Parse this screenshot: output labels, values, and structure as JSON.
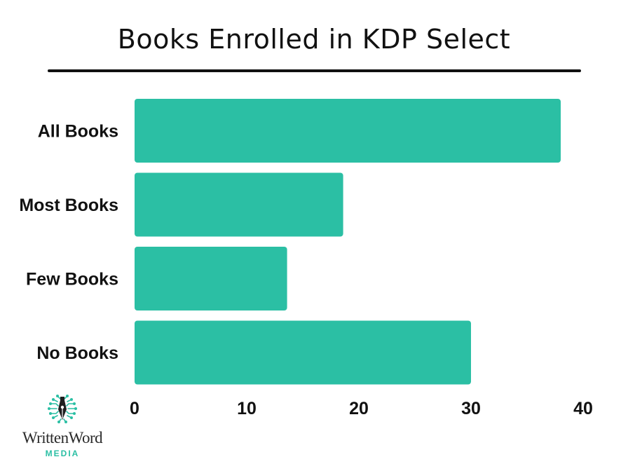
{
  "chart_data": {
    "type": "bar",
    "orientation": "horizontal",
    "title": "Books Enrolled in KDP Select",
    "categories": [
      "All Books",
      "Most Books",
      "Few Books",
      "No Books"
    ],
    "values": [
      38,
      18.6,
      13.6,
      30
    ],
    "xlim": [
      0,
      40
    ],
    "xticks": [
      "0",
      "10",
      "20",
      "30",
      "40"
    ],
    "xlabel": "",
    "ylabel": "",
    "grid": false,
    "legend": "none",
    "bar_color": "#2bbfa4",
    "title_rule_color": "#111111"
  },
  "logo": {
    "wordmark": "WrittenWord",
    "subtitle": "MEDIA",
    "icon": "pen-nib-circuit-icon",
    "color": "#2bbfa4"
  }
}
